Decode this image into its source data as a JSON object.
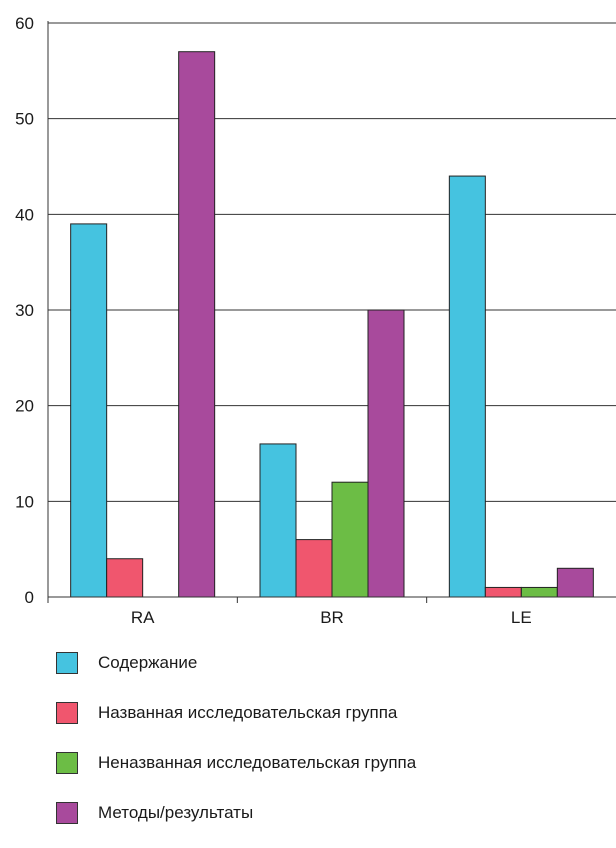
{
  "chart_data": {
    "type": "bar",
    "title": "",
    "xlabel": "",
    "ylabel": "",
    "categories": [
      "RA",
      "BR",
      "LE"
    ],
    "ylim": [
      0,
      60
    ],
    "yticks": [
      0,
      10,
      20,
      30,
      40,
      50,
      60
    ],
    "grid": true,
    "legend_position": "bottom",
    "series": [
      {
        "name": "Содержание",
        "color": "#45c3e0",
        "values": [
          39,
          16,
          44
        ]
      },
      {
        "name": "Названная исследовательская группа",
        "color": "#f0566e",
        "values": [
          4,
          6,
          1
        ]
      },
      {
        "name": "Неназванная исследовательская группа",
        "color": "#6cbd45",
        "values": [
          0,
          12,
          1
        ]
      },
      {
        "name": "Методы/результаты",
        "color": "#a84a9c",
        "values": [
          57,
          30,
          3
        ]
      }
    ]
  }
}
